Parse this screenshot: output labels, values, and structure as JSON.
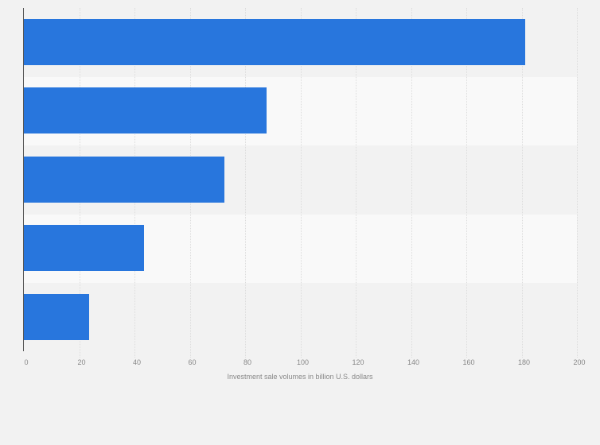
{
  "chart_data": {
    "type": "bar",
    "orientation": "horizontal",
    "title": "",
    "categories": [
      "",
      "",
      "",
      "",
      ""
    ],
    "values": [
      181.3,
      87.8,
      72.5,
      43.5,
      23.5
    ],
    "xlabel": "Investment sale volumes in billion U.S. dollars",
    "ylabel": "",
    "xlim": [
      0,
      200
    ],
    "xticks": [
      "0",
      "20",
      "40",
      "60",
      "80",
      "100",
      "120",
      "140",
      "160",
      "180",
      "200"
    ],
    "grid": true,
    "legend": "none",
    "bar_color": "#2876dd"
  }
}
